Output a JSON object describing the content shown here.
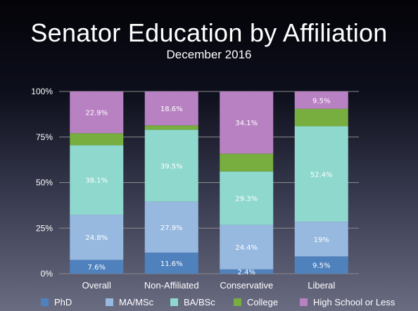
{
  "chart_data": {
    "type": "bar",
    "stacked": true,
    "title": "Senator Education by Affiliation",
    "subtitle": "December 2016",
    "categories": [
      "Overall",
      "Non-Affiliated",
      "Conservative",
      "Liberal"
    ],
    "ylim": [
      0,
      100
    ],
    "yticks": [
      "0%",
      "25%",
      "50%",
      "75%",
      "100%"
    ],
    "ytick_values": [
      0,
      25,
      50,
      75,
      100
    ],
    "grid": true,
    "legend_position": "bottom",
    "series": [
      {
        "name": "PhD",
        "color": "#4f81bd",
        "values": [
          7.6,
          11.6,
          2.4,
          9.5
        ],
        "labels": [
          "7.6%",
          "11.6%",
          "2.4%",
          "9.5%"
        ]
      },
      {
        "name": "MA/MSc",
        "color": "#97b9e0",
        "values": [
          24.8,
          27.9,
          24.4,
          19
        ],
        "labels": [
          "24.8%",
          "27.9%",
          "24.4%",
          "19%"
        ]
      },
      {
        "name": "BA/BSc",
        "color": "#8fd8cd",
        "values": [
          38.1,
          39.5,
          29.3,
          52.4
        ],
        "labels": [
          "38.1%",
          "39.5%",
          "29.3%",
          "52.4%"
        ]
      },
      {
        "name": "College",
        "color": "#78ad3f",
        "values": [
          6.6,
          2.4,
          9.8,
          9.6
        ],
        "labels": [
          "",
          "",
          "",
          ""
        ]
      },
      {
        "name": "High School or Less",
        "color": "#b882c2",
        "values": [
          22.9,
          18.6,
          34.1,
          9.5
        ],
        "labels": [
          "22.9%",
          "18.6%",
          "34.1%",
          "9.5%"
        ]
      }
    ]
  }
}
